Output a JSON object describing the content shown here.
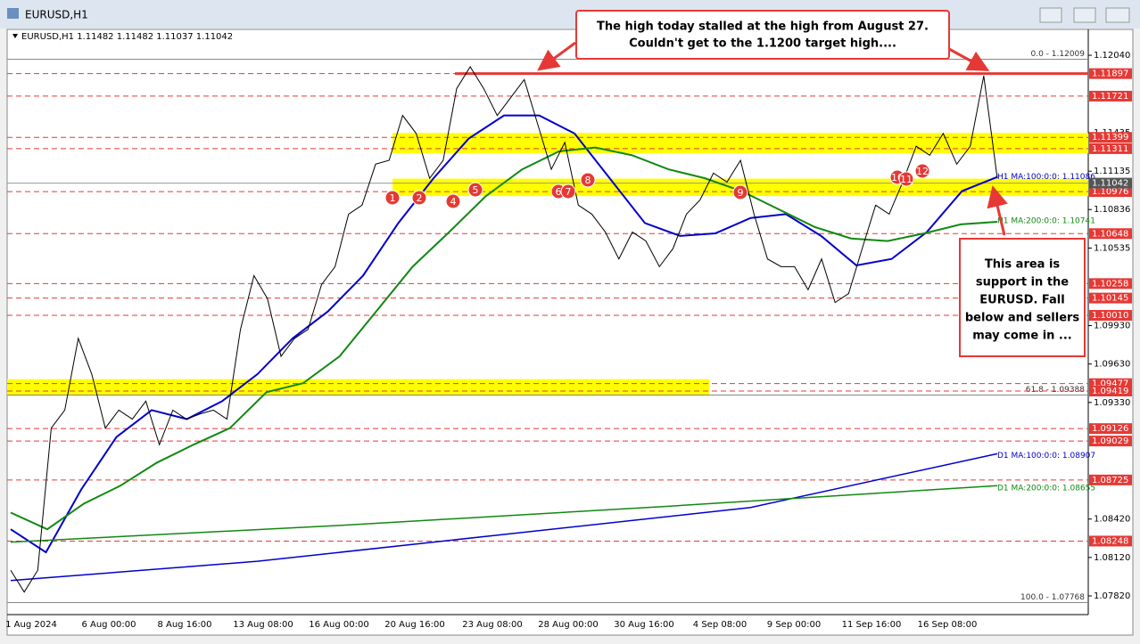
{
  "window": {
    "title": "EURUSD,H1"
  },
  "chart_data": {
    "type": "line",
    "header": "EURUSD,H1  1.11482 1.11482 1.11037 1.11042",
    "ylim": [
      1.07674,
      1.12242
    ],
    "yticks": [
      {
        "value": 1.1204,
        "label": "1.12040"
      },
      1.11435,
      1.11135,
      1.10836,
      1.10535,
      {
        "value": 1.0993,
        "label": "1.09930"
      },
      {
        "value": 1.0963,
        "label": "1.09630"
      },
      {
        "value": 1.0933,
        "label": "1.09330"
      },
      {
        "value": 1.0842,
        "label": "1.08420"
      },
      {
        "value": 1.0812,
        "label": "1.08120"
      },
      {
        "value": 1.0782,
        "label": "1.07820"
      }
    ],
    "time_labels": [
      "1 Aug 2024",
      "6 Aug 00:00",
      "8 Aug 16:00",
      "13 Aug 08:00",
      "16 Aug 00:00",
      "20 Aug 16:00",
      "23 Aug 08:00",
      "28 Aug 00:00",
      "30 Aug 16:00",
      "4 Sep 08:00",
      "9 Sep 00:00",
      "11 Sep 16:00",
      "16 Sep 08:00"
    ],
    "color": "#000000",
    "values": [
      1.0802,
      1.0785,
      1.0802,
      1.0913,
      1.0927,
      1.0983,
      1.0955,
      1.0913,
      1.0927,
      1.092,
      1.0934,
      1.09,
      1.0927,
      1.092,
      1.0924,
      1.0927,
      1.092,
      1.099,
      1.1032,
      1.1014,
      1.0969,
      1.0983,
      1.099,
      1.1025,
      1.1039,
      1.108,
      1.1087,
      1.1119,
      1.1122,
      1.1157,
      1.1143,
      1.1108,
      1.1122,
      1.1178,
      1.1195,
      1.1178,
      1.1157,
      1.1171,
      1.1185,
      1.115,
      1.1115,
      1.1136,
      1.1087,
      1.108,
      1.1066,
      1.1045,
      1.1066,
      1.1059,
      1.1039,
      1.1053,
      1.108,
      1.1091,
      1.1112,
      1.1105,
      1.1122,
      1.108,
      1.1045,
      1.1039,
      1.1039,
      1.1021,
      1.1045,
      1.1011,
      1.1018,
      1.1053,
      1.1087,
      1.108,
      1.1105,
      1.1133,
      1.1126,
      1.1143,
      1.1119,
      1.1133,
      1.1188,
      1.1108
    ],
    "ma_lines": [
      {
        "label": "H1 MA:100:0:0: 1.11086",
        "value": 1.11086,
        "color": "#0000cc",
        "values": [
          1.0834,
          1.0816,
          1.0865,
          1.0906,
          1.0927,
          1.092,
          1.0934,
          1.0955,
          1.0983,
          1.1004,
          1.1032,
          1.1073,
          1.1108,
          1.1139,
          1.1157,
          1.1157,
          1.1143,
          1.1108,
          1.1073,
          1.1063,
          1.1065,
          1.1077,
          1.108,
          1.1063,
          1.104,
          1.1045,
          1.1066,
          1.1098,
          1.1109
        ]
      },
      {
        "label": "H1 MA:200:0:0: 1.10741",
        "value": 1.10741,
        "color": "#118811",
        "values": [
          1.0847,
          1.0834,
          1.0854,
          1.0868,
          1.0886,
          1.09,
          1.0913,
          1.0941,
          1.0948,
          1.0969,
          1.1004,
          1.1039,
          1.1066,
          1.1094,
          1.1115,
          1.1129,
          1.1132,
          1.1126,
          1.1115,
          1.1108,
          1.1098,
          1.1084,
          1.107,
          1.1061,
          1.1059,
          1.1065,
          1.1072,
          1.1074
        ]
      },
      {
        "label": "D1 MA:100:0:0: 1.08907",
        "value": 1.08907,
        "color": "#0000cc",
        "values": [
          1.0794,
          1.0809,
          1.083,
          1.0851,
          1.0893
        ]
      },
      {
        "label": "D1 MA:200:0:0: 1.08655",
        "value": 1.08655,
        "color": "#118811",
        "values": [
          1.0824,
          1.0837,
          1.0852,
          1.0868
        ]
      }
    ],
    "levels": [
      1.11897,
      1.11721,
      1.11399,
      1.11311,
      1.10976,
      1.10648,
      1.10258,
      1.10145,
      1.1001,
      1.09477,
      1.09419,
      1.09126,
      1.09029,
      1.08725,
      1.08248
    ],
    "level_labels": [
      "1.11897",
      "1.11721",
      "1.11399",
      "1.11311",
      "1.10976",
      "1.10648",
      "1.10258",
      "1.10145",
      "1.10010",
      "1.09477",
      "1.09419",
      "1.09126",
      "1.09029",
      "1.08725",
      "1.08248"
    ],
    "level_color": "#e53935",
    "bid": 1.11042,
    "bid_color": "#555555",
    "high_line": 1.11897,
    "zones": [
      [
        1.11311,
        1.11399
      ],
      [
        1.10976,
        1.11042
      ],
      [
        1.09419,
        1.09477
      ]
    ],
    "zone_color": "#ffff00",
    "fib_levels": [
      {
        "value": 1.12009,
        "label": "0.0 - 1.12009"
      },
      {
        "value": 1.09388,
        "label": "61.8 - 1.09388"
      },
      {
        "value": 1.07768,
        "label": "100.0 - 1.07768"
      }
    ],
    "markers": [
      "1",
      "2",
      "4",
      "5",
      "6",
      "7",
      "8",
      "9",
      "10",
      "11",
      "12"
    ],
    "annotations": [
      {
        "lines": [
          "The high today stalled at the high from August 27.",
          "Couldn't get to the 1.1200 target high...."
        ]
      },
      {
        "lines": [
          "This area is",
          "support in the",
          "EURUSD. Fall",
          "below and sellers",
          "may come in ..."
        ]
      }
    ]
  }
}
